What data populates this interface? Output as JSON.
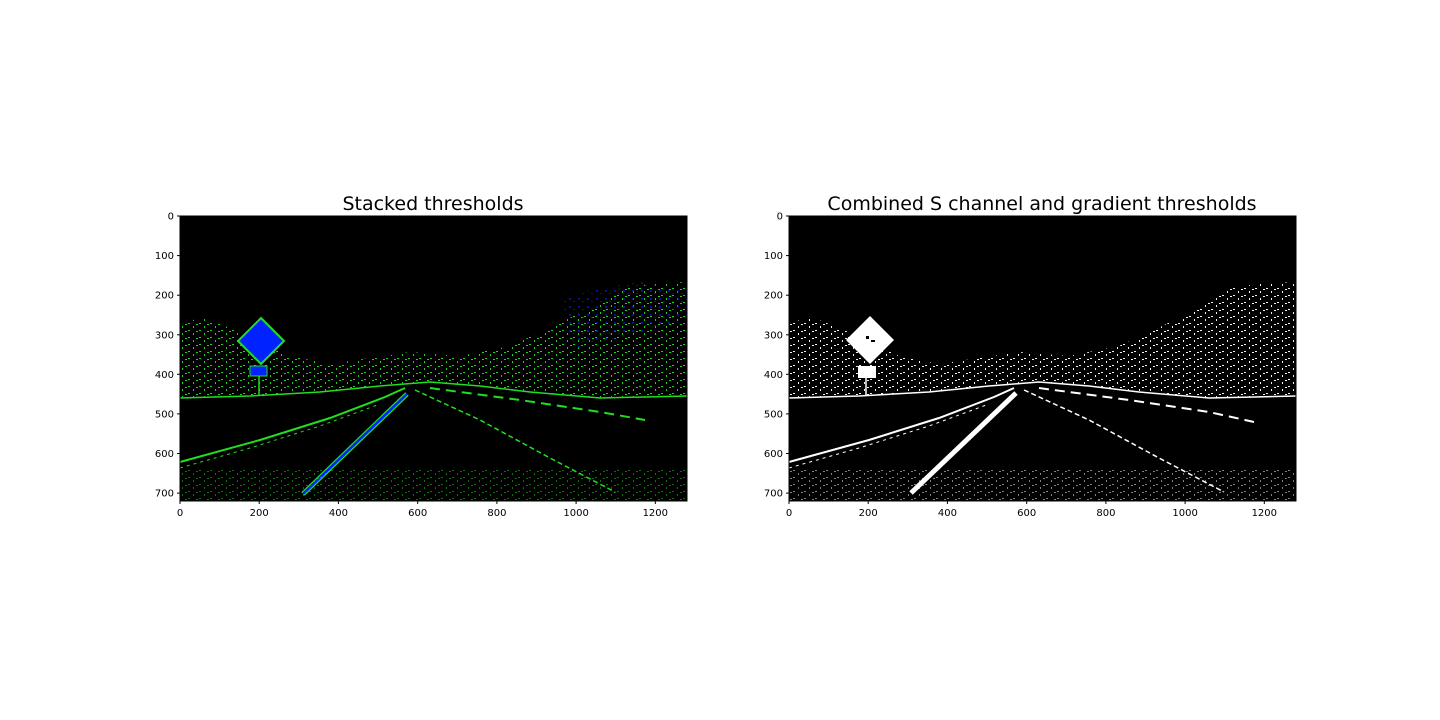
{
  "figure": {
    "background": "#ffffff",
    "panels": [
      {
        "id": "left",
        "title": "Stacked thresholds",
        "xticks": [
          "0",
          "200",
          "400",
          "600",
          "800",
          "1000",
          "1200"
        ],
        "yticks": [
          "0",
          "100",
          "200",
          "300",
          "400",
          "500",
          "600",
          "700"
        ],
        "image_description_colors": {
          "background": "#000000",
          "gradient": "#22dd22",
          "s_channel": "#0022ff"
        }
      },
      {
        "id": "right",
        "title": "Combined S channel and gradient thresholds",
        "xticks": [
          "0",
          "200",
          "400",
          "600",
          "800",
          "1000",
          "1200"
        ],
        "yticks": [
          "0",
          "100",
          "200",
          "300",
          "400",
          "500",
          "600",
          "700"
        ],
        "image_description_colors": {
          "background": "#000000",
          "binary": "#ffffff"
        }
      }
    ]
  }
}
